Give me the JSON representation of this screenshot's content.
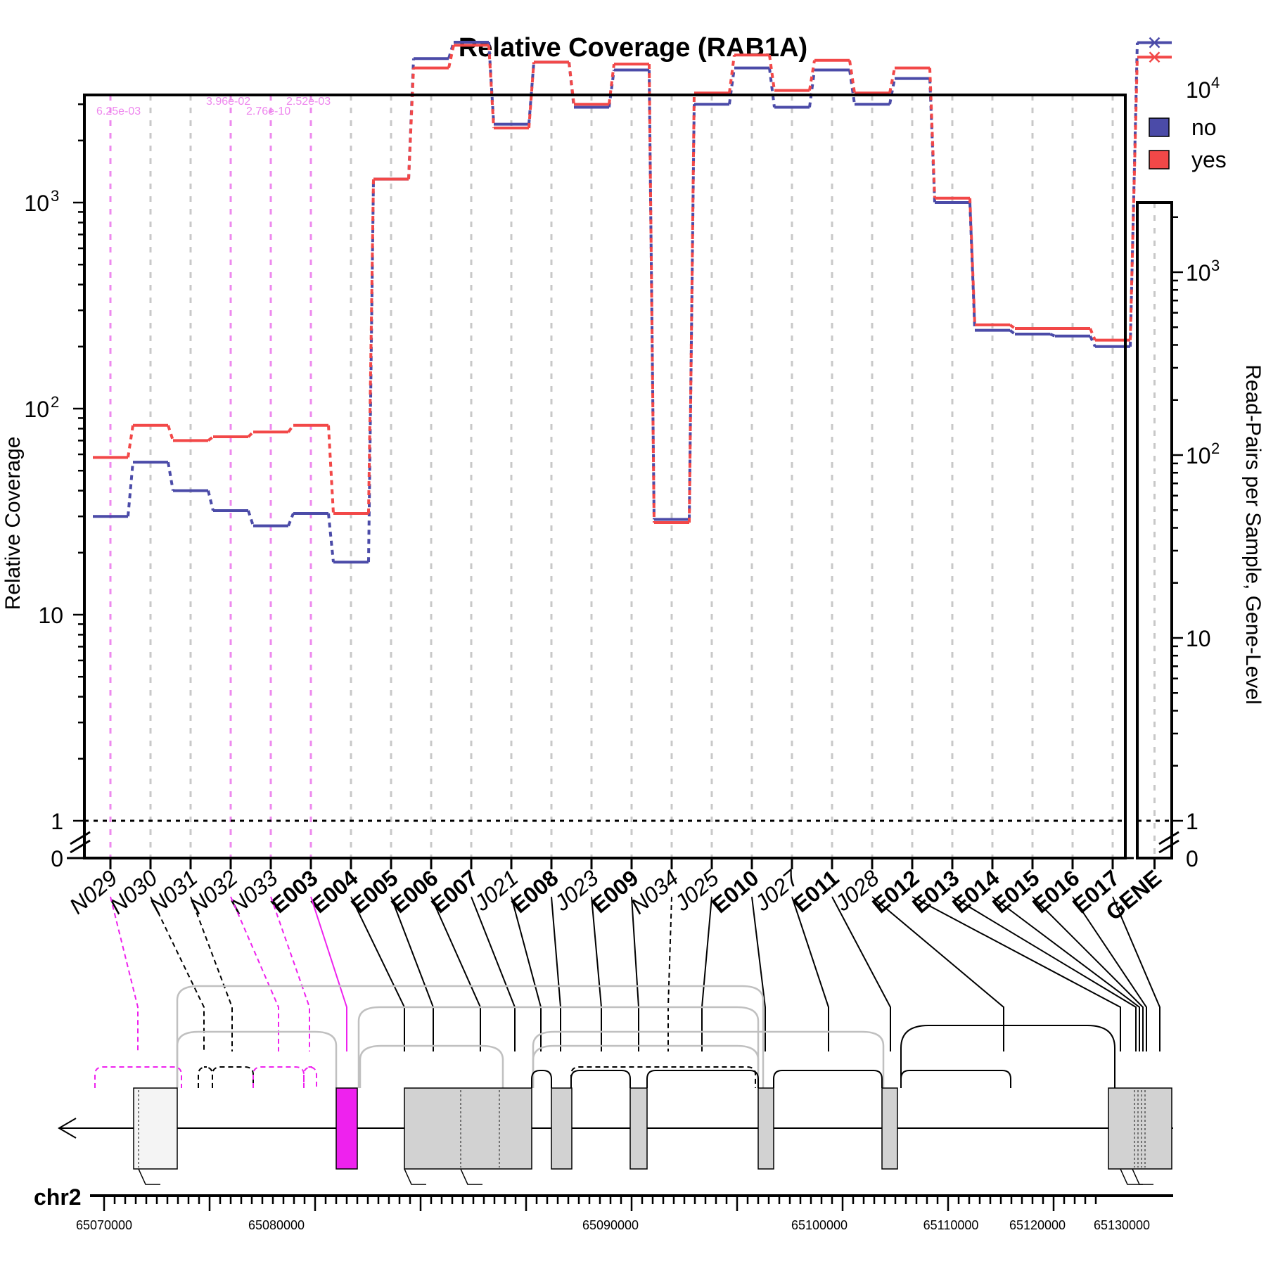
{
  "chart_data": {
    "type": "line",
    "title": "Relative Coverage (RAB1A)",
    "ylabel": "Relative Coverage",
    "y2label": "Read-Pairs per Sample, Gene-Level",
    "yscale": "log",
    "reference_line": 1,
    "categories": [
      "N029",
      "N030",
      "N031",
      "N032",
      "N033",
      "E003",
      "E004",
      "E005",
      "E006",
      "E007",
      "J021",
      "E008",
      "J023",
      "E009",
      "N034",
      "J025",
      "E010",
      "J027",
      "E011",
      "J028",
      "E012",
      "E013",
      "E014",
      "E015",
      "E016",
      "E017"
    ],
    "bold_categories": [
      "E003",
      "E004",
      "E005",
      "E006",
      "E007",
      "E008",
      "E009",
      "E010",
      "E011",
      "E012",
      "E013",
      "E014",
      "E015",
      "E016",
      "E017",
      "GENE"
    ],
    "gene_category": "GENE",
    "y_ticks": [
      {
        "label": "0",
        "value": 0
      },
      {
        "label": "1",
        "value": 1
      },
      {
        "label": "10",
        "value": 10
      },
      {
        "label": "10",
        "sup": "2",
        "value": 100
      },
      {
        "label": "10",
        "sup": "3",
        "value": 1000
      }
    ],
    "y2_ticks": [
      {
        "label": "0",
        "value": 0
      },
      {
        "label": "1",
        "value": 1
      },
      {
        "label": "10",
        "value": 10
      },
      {
        "label": "10",
        "sup": "2",
        "value": 100
      },
      {
        "label": "10",
        "sup": "3",
        "value": 1000
      },
      {
        "label": "10",
        "sup": "4",
        "value": 10000
      }
    ],
    "legend": {
      "position": "top-right",
      "entries": [
        {
          "name": "no",
          "color": "#4b4ba8"
        },
        {
          "name": "yes",
          "color": "#f24848"
        }
      ]
    },
    "series": [
      {
        "name": "no",
        "color": "#4b4ba8",
        "values": [
          30,
          55,
          40,
          32,
          27,
          31,
          18,
          1300,
          5000,
          6000,
          2400,
          4800,
          2900,
          4400,
          29,
          3000,
          4500,
          2900,
          4400,
          3000,
          4000,
          1000,
          240,
          230,
          225,
          200
        ],
        "gene_value": 18000
      },
      {
        "name": "yes",
        "color": "#f24848",
        "values": [
          58,
          83,
          70,
          73,
          77,
          83,
          31,
          1300,
          4500,
          5800,
          2300,
          4800,
          3000,
          4700,
          28,
          3400,
          5200,
          3500,
          4900,
          3400,
          4500,
          1050,
          255,
          245,
          245,
          215
        ],
        "gene_value": 15000
      }
    ],
    "significant": [
      {
        "category": "N029",
        "label": "6.25e-03"
      },
      {
        "category": "N032",
        "label": "3.96e-02"
      },
      {
        "category": "N033",
        "label": "2.76e-10"
      },
      {
        "category": "E003",
        "label": "2.52e-03"
      }
    ],
    "highlight_color": "#ee22ee",
    "gene_track": {
      "chromosome": "chr2",
      "ticks": [
        "65070000",
        "65080000",
        "65090000",
        "65100000",
        "65110000",
        "65120000",
        "65130000"
      ]
    }
  }
}
